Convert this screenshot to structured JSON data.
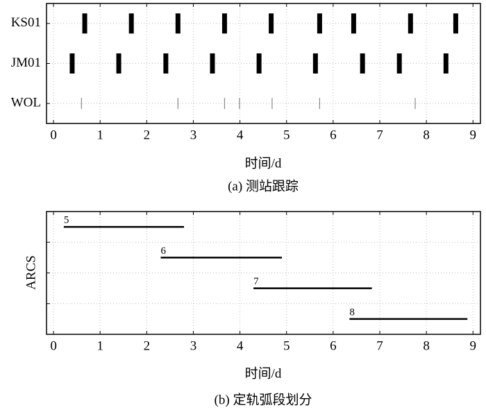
{
  "chart_data": [
    {
      "type": "eventplot",
      "title": "(a) 测站跟踪",
      "xlabel": "时间/d",
      "xlim": [
        -0.15,
        9.16
      ],
      "xticks": [
        0,
        1,
        2,
        3,
        4,
        5,
        6,
        7,
        8,
        9
      ],
      "grid": true,
      "series": [
        {
          "name": "KS01",
          "color": "#000000",
          "x": [
            0.67,
            1.67,
            2.67,
            3.67,
            4.67,
            5.71,
            6.44,
            7.66,
            8.63
          ]
        },
        {
          "name": "JM01",
          "color": "#000000",
          "x": [
            0.4,
            1.4,
            2.41,
            3.41,
            4.41,
            5.62,
            6.63,
            7.42,
            8.42
          ]
        },
        {
          "name": "WOL",
          "color": "#888888",
          "x": [
            0.6,
            2.67,
            3.67,
            3.99,
            4.69,
            5.71,
            7.76
          ]
        }
      ]
    },
    {
      "type": "segments",
      "title": "(b) 定轨弧段划分",
      "xlabel": "时间/d",
      "ylabel": "ARCS",
      "xlim": [
        -0.15,
        9.16
      ],
      "xticks": [
        0,
        1,
        2,
        3,
        4,
        5,
        6,
        7,
        8,
        9
      ],
      "grid": true,
      "color": "#000000",
      "segments": [
        {
          "label": "5",
          "start": 0.22,
          "end": 2.8
        },
        {
          "label": "6",
          "start": 2.3,
          "end": 4.9
        },
        {
          "label": "7",
          "start": 4.29,
          "end": 6.83
        },
        {
          "label": "8",
          "start": 6.35,
          "end": 8.88
        }
      ]
    }
  ]
}
